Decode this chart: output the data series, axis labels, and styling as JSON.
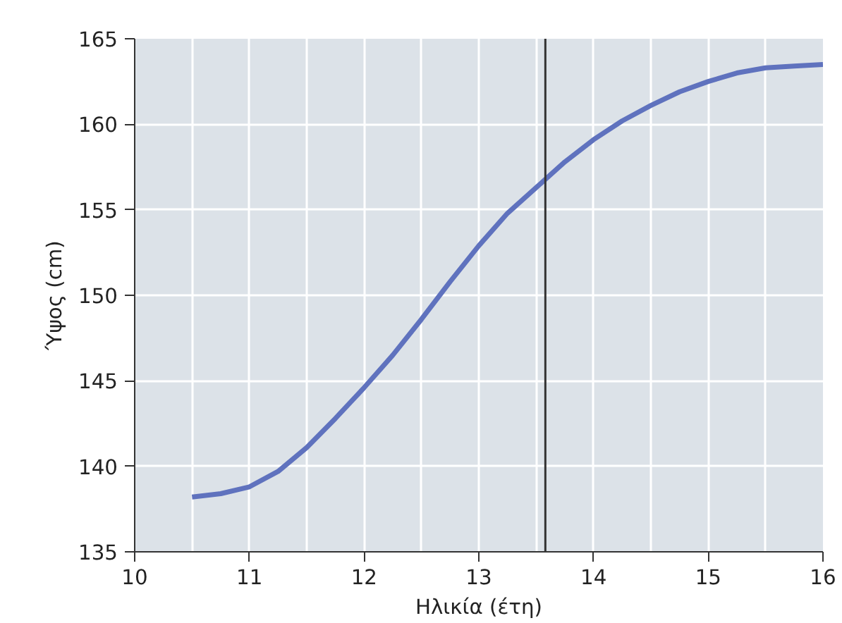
{
  "chart_data": {
    "type": "line",
    "xlabel": "Ηλικία (έτη)",
    "ylabel": "Ύψος (cm)",
    "x": [
      10.5,
      10.75,
      11,
      11.25,
      11.5,
      11.75,
      12,
      12.25,
      12.5,
      12.75,
      13,
      13.25,
      13.5,
      13.75,
      14,
      14.25,
      14.5,
      14.75,
      15,
      15.25,
      15.5,
      15.75,
      16
    ],
    "series": [
      {
        "color": "#5f72be",
        "values": [
          138.2,
          138.4,
          138.8,
          139.7,
          141.1,
          142.8,
          144.6,
          146.5,
          148.6,
          150.8,
          152.9,
          154.8,
          156.3,
          157.8,
          159.1,
          160.2,
          161.1,
          161.9,
          162.5,
          163.0,
          163.3,
          163.4,
          163.5
        ]
      }
    ],
    "xlim": [
      10,
      16
    ],
    "ylim": [
      135,
      165
    ],
    "xticks": [
      10,
      11,
      12,
      13,
      14,
      15,
      16
    ],
    "yticks": [
      135,
      140,
      145,
      150,
      155,
      160,
      165
    ],
    "ref_lines": [
      {
        "axis": "x",
        "value": 13.58,
        "label": null,
        "color": "#333333"
      }
    ],
    "grid": true,
    "marker": "none",
    "line_style": "solid"
  }
}
